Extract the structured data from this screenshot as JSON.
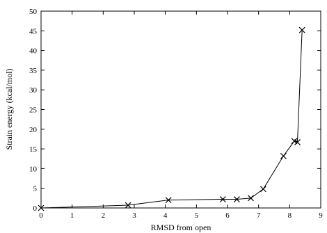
{
  "chart_data": {
    "type": "line",
    "title": "",
    "xlabel": "RMSD from open",
    "ylabel": "Strain energy (kcal/mol)",
    "xlim": [
      0,
      9
    ],
    "ylim": [
      0,
      50
    ],
    "xticks": [
      0,
      1,
      2,
      3,
      4,
      5,
      6,
      7,
      8,
      9
    ],
    "yticks": [
      0,
      5,
      10,
      15,
      20,
      25,
      30,
      35,
      40,
      45,
      50
    ],
    "grid": false,
    "marker": "x",
    "series": [
      {
        "x": [
          0,
          2.8,
          4.1,
          5.85,
          6.3,
          6.75,
          7.15,
          7.8,
          8.15,
          8.25,
          8.4
        ],
        "y": [
          0,
          0.7,
          2.0,
          2.2,
          2.2,
          2.5,
          4.8,
          13.2,
          17.0,
          16.7,
          45.2
        ]
      }
    ]
  }
}
